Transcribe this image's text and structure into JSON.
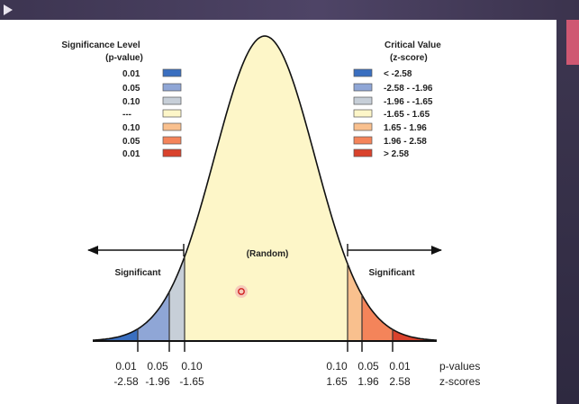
{
  "legend_left": {
    "title_line1": "Significance Level",
    "title_line2": "(p-value)",
    "labels": [
      "0.01",
      "0.05",
      "0.10",
      "---",
      "0.10",
      "0.05",
      "0.01"
    ]
  },
  "legend_right": {
    "title_line1": "Critical Value",
    "title_line2": "(z-score)",
    "labels": [
      "< -2.58",
      "-2.58 - -1.96",
      "-1.96 - -1.65",
      "-1.65 - 1.65",
      "1.65 - 1.96",
      "1.96 - 2.58",
      "> 2.58"
    ]
  },
  "swatch_colors": [
    "#3a6fc0",
    "#8fa6d6",
    "#c7cfd8",
    "#fdf6c8",
    "#f9c08e",
    "#f4845a",
    "#d9422c"
  ],
  "curve": {
    "center_label": "(Random)",
    "left_label": "Significant",
    "right_label": "Significant"
  },
  "axis": {
    "left_p": [
      "0.01",
      "0.05",
      "0.10"
    ],
    "left_z": [
      "-2.58",
      "-1.96",
      "-1.65"
    ],
    "right_p": [
      "0.10",
      "0.05",
      "0.01"
    ],
    "right_z": [
      "1.65",
      "1.96",
      "2.58"
    ],
    "p_label": "p-values",
    "z_label": "z-scores"
  }
}
